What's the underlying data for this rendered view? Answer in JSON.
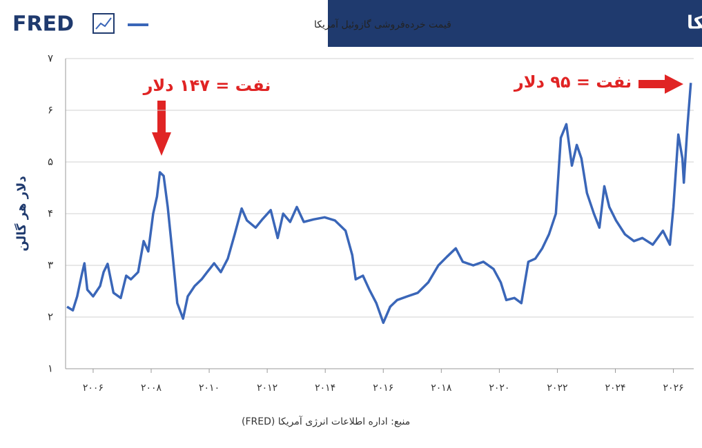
{
  "chart_data": {
    "type": "line",
    "logo": "FRED",
    "title": "قیمت خرده‌فروشی گازوئیل آمریکا",
    "y_label": "دلار هر گالن",
    "source": "منبع: اداره اطلاعات انرژی آمریکا (FRED)",
    "annotations": [
      "نفت = ۱۴۷ دلار",
      "نفت = ۹۵ دلار"
    ],
    "grid": true,
    "xlim": [
      2005.05,
      2026.7
    ],
    "ylim": [
      1,
      7
    ],
    "yticks": [
      {
        "value": 1,
        "label": "۱"
      },
      {
        "value": 2,
        "label": "۲"
      },
      {
        "value": 3,
        "label": "۳"
      },
      {
        "value": 4,
        "label": "۴"
      },
      {
        "value": 5,
        "label": "۵"
      },
      {
        "value": 6,
        "label": "۶"
      },
      {
        "value": 7,
        "label": "۷"
      }
    ],
    "xticks": [
      {
        "value": 2006,
        "label": "۲۰۰۶"
      },
      {
        "value": 2008,
        "label": "۲۰۰۸"
      },
      {
        "value": 2010,
        "label": "۲۰۱۰"
      },
      {
        "value": 2012,
        "label": "۲۰۱۲"
      },
      {
        "value": 2014,
        "label": "۲۰۱۴"
      },
      {
        "value": 2016,
        "label": "۲۰۱۶"
      },
      {
        "value": 2018,
        "label": "۲۰۱۸"
      },
      {
        "value": 2020,
        "label": "۲۰۲۰"
      },
      {
        "value": 2022,
        "label": "۲۰۲۲"
      },
      {
        "value": 2024,
        "label": "۲۰۲۴"
      },
      {
        "value": 2026,
        "label": "۲۰۲۶"
      }
    ],
    "x": [
      2005.1,
      2005.3,
      2005.45,
      2005.6,
      2005.7,
      2005.8,
      2006.0,
      2006.24,
      2006.36,
      2006.5,
      2006.7,
      2006.95,
      2007.14,
      2007.3,
      2007.55,
      2007.74,
      2007.9,
      2008.07,
      2008.2,
      2008.3,
      2008.43,
      2008.57,
      2008.74,
      2008.9,
      2009.1,
      2009.26,
      2009.5,
      2009.74,
      2009.93,
      2010.17,
      2010.4,
      2010.64,
      2010.88,
      2011.12,
      2011.3,
      2011.6,
      2011.83,
      2012.12,
      2012.36,
      2012.55,
      2012.79,
      2013.02,
      2013.26,
      2013.6,
      2013.98,
      2014.33,
      2014.7,
      2014.93,
      2015.05,
      2015.3,
      2015.52,
      2015.76,
      2016.0,
      2016.24,
      2016.48,
      2016.83,
      2017.19,
      2017.55,
      2017.9,
      2018.2,
      2018.5,
      2018.74,
      2019.1,
      2019.45,
      2019.8,
      2020.05,
      2020.24,
      2020.52,
      2020.76,
      2021.0,
      2021.24,
      2021.48,
      2021.71,
      2021.95,
      2022.12,
      2022.31,
      2022.5,
      2022.67,
      2022.83,
      2023.02,
      2023.26,
      2023.45,
      2023.62,
      2023.79,
      2024.02,
      2024.33,
      2024.64,
      2024.93,
      2025.29,
      2025.64,
      2025.88,
      2026.0,
      2026.17,
      2026.31,
      2026.36,
      2026.48,
      2026.6
    ],
    "series": [
      {
        "name": "قیمت خرده‌فروشی گازوئیل آمریکا",
        "color": "#3a66b8",
        "values": [
          2.2,
          2.13,
          2.4,
          2.8,
          3.04,
          2.53,
          2.4,
          2.6,
          2.87,
          3.03,
          2.47,
          2.37,
          2.8,
          2.73,
          2.87,
          3.47,
          3.27,
          4.0,
          4.33,
          4.8,
          4.73,
          4.13,
          3.2,
          2.27,
          1.97,
          2.4,
          2.6,
          2.73,
          2.87,
          3.04,
          2.87,
          3.13,
          3.6,
          4.1,
          3.87,
          3.73,
          3.89,
          4.07,
          3.53,
          4.0,
          3.84,
          4.13,
          3.84,
          3.89,
          3.93,
          3.87,
          3.67,
          3.2,
          2.73,
          2.8,
          2.53,
          2.27,
          1.89,
          2.2,
          2.33,
          2.4,
          2.47,
          2.67,
          3.0,
          3.17,
          3.33,
          3.07,
          3.0,
          3.07,
          2.93,
          2.67,
          2.33,
          2.37,
          2.27,
          3.07,
          3.13,
          3.33,
          3.6,
          4.0,
          5.47,
          5.73,
          4.93,
          5.33,
          5.07,
          4.4,
          4.0,
          3.73,
          4.53,
          4.13,
          3.87,
          3.6,
          3.47,
          3.53,
          3.4,
          3.67,
          3.4,
          4.13,
          5.53,
          5.07,
          4.6,
          5.67,
          6.53
        ]
      }
    ]
  }
}
